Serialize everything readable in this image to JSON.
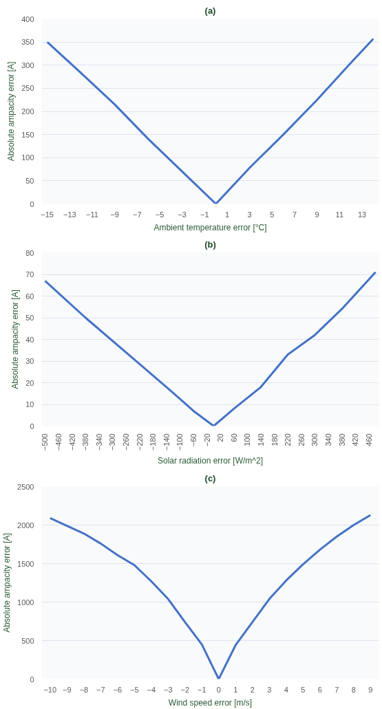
{
  "chart_data": [
    {
      "type": "line",
      "title": "(a)",
      "xlabel": "Ambient temperature error [°C]",
      "ylabel": "Absolute ampacity error [A]",
      "x": [
        -15,
        -12,
        -9,
        -6,
        -3,
        0,
        3,
        6,
        9,
        12,
        14
      ],
      "series": [
        {
          "color": "#4472c4",
          "values": [
            350,
            283,
            215,
            140,
            70,
            0,
            78,
            150,
            225,
            305,
            357
          ]
        }
      ],
      "xlim": [
        -15.5,
        14.5
      ],
      "xticks": [
        -15,
        -13,
        -11,
        -9,
        -7,
        -5,
        -3,
        -1,
        1,
        3,
        5,
        7,
        9,
        11,
        13
      ],
      "ylim": [
        0,
        400
      ],
      "yticks": [
        0,
        50,
        100,
        150,
        200,
        250,
        300,
        350,
        400
      ],
      "grid": "y",
      "line_style": "solid"
    },
    {
      "type": "line",
      "title": "(b)",
      "xlabel": "Solar radiation error [W/m^2]",
      "ylabel": "Absolute ampacity error [A]",
      "x": [
        -500,
        -380,
        -260,
        -140,
        -60,
        0,
        60,
        140,
        220,
        300,
        380,
        480
      ],
      "series": [
        {
          "color": "#4472c4",
          "values": [
            67,
            50,
            34,
            18,
            7,
            0,
            8,
            18,
            33,
            42,
            54,
            71
          ]
        }
      ],
      "xlim": [
        -510,
        490
      ],
      "xticks": [
        -500,
        -460,
        -420,
        -380,
        -340,
        -300,
        -260,
        -220,
        -180,
        -140,
        -100,
        -60,
        -20,
        20,
        60,
        100,
        140,
        180,
        220,
        260,
        300,
        340,
        380,
        420,
        460
      ],
      "ylim": [
        0,
        80
      ],
      "yticks": [
        0,
        10,
        20,
        30,
        40,
        50,
        60,
        70,
        80
      ],
      "grid": "y",
      "line_style": "solid"
    },
    {
      "type": "line",
      "title": "(c)",
      "xlabel": "Wind speed error [m/s]",
      "ylabel": "Absolute ampacity error [A]",
      "x": [
        -10,
        -9,
        -8,
        -7,
        -6,
        -5,
        -4,
        -3,
        -2,
        -1,
        0,
        1,
        2,
        3,
        4,
        5,
        6,
        7,
        8,
        9
      ],
      "series": [
        {
          "color": "#4472c4",
          "values": [
            2090,
            1990,
            1890,
            1760,
            1610,
            1480,
            1270,
            1040,
            740,
            450,
            0,
            440,
            740,
            1040,
            1280,
            1490,
            1680,
            1850,
            2000,
            2130
          ]
        }
      ],
      "xlim": [
        -10.5,
        9.5
      ],
      "xticks": [
        -10,
        -9,
        -8,
        -7,
        -6,
        -5,
        -4,
        -3,
        -2,
        -1,
        0,
        1,
        2,
        3,
        4,
        5,
        6,
        7,
        8,
        9
      ],
      "ylim": [
        0,
        2500
      ],
      "yticks": [
        0,
        500,
        1000,
        1500,
        2000,
        2500
      ],
      "grid": "y",
      "line_style": "solid"
    }
  ]
}
